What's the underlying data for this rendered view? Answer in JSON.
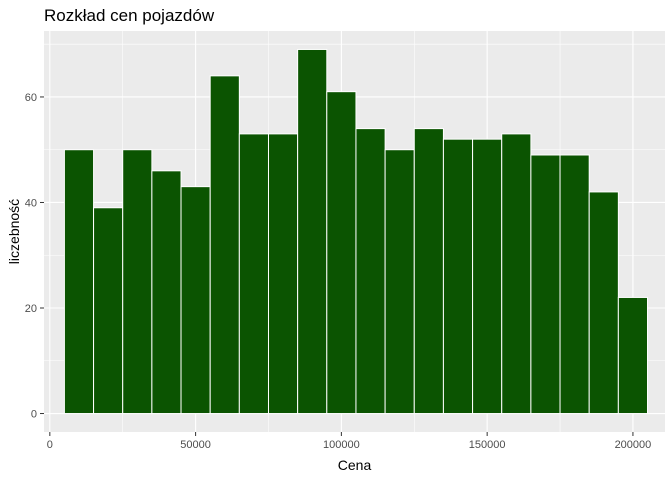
{
  "chart_data": {
    "type": "bar",
    "title": "Rozkład cen pojazdów",
    "xlabel": "Cena",
    "ylabel": "liczebność",
    "xlim": [
      -2000,
      211000
    ],
    "ylim": [
      -3.5,
      72.5
    ],
    "x_ticks": [
      0,
      50000,
      100000,
      150000,
      200000
    ],
    "x_tick_labels": [
      "0",
      "50000",
      "100000",
      "150000",
      "200000"
    ],
    "y_ticks": [
      0,
      20,
      40,
      60
    ],
    "y_tick_labels": [
      "0",
      "20",
      "40",
      "60"
    ],
    "bin_width": 10000,
    "bins": [
      {
        "x0": 5000,
        "x1": 15000,
        "count": 50
      },
      {
        "x0": 15000,
        "x1": 25000,
        "count": 39
      },
      {
        "x0": 25000,
        "x1": 35000,
        "count": 50
      },
      {
        "x0": 35000,
        "x1": 45000,
        "count": 46
      },
      {
        "x0": 45000,
        "x1": 55000,
        "count": 43
      },
      {
        "x0": 55000,
        "x1": 65000,
        "count": 64
      },
      {
        "x0": 65000,
        "x1": 75000,
        "count": 53
      },
      {
        "x0": 75000,
        "x1": 85000,
        "count": 53
      },
      {
        "x0": 85000,
        "x1": 95000,
        "count": 69
      },
      {
        "x0": 95000,
        "x1": 105000,
        "count": 61
      },
      {
        "x0": 105000,
        "x1": 115000,
        "count": 54
      },
      {
        "x0": 115000,
        "x1": 125000,
        "count": 50
      },
      {
        "x0": 125000,
        "x1": 135000,
        "count": 54
      },
      {
        "x0": 135000,
        "x1": 145000,
        "count": 52
      },
      {
        "x0": 145000,
        "x1": 155000,
        "count": 52
      },
      {
        "x0": 155000,
        "x1": 165000,
        "count": 53
      },
      {
        "x0": 165000,
        "x1": 175000,
        "count": 49
      },
      {
        "x0": 175000,
        "x1": 185000,
        "count": 49
      },
      {
        "x0": 185000,
        "x1": 195000,
        "count": 42
      },
      {
        "x0": 195000,
        "x1": 205000,
        "count": 22
      }
    ],
    "bar_fill": "#0b5401",
    "bar_outline": "#ffffff",
    "panel_background": "#ebebeb",
    "grid": true,
    "legend": "none"
  }
}
